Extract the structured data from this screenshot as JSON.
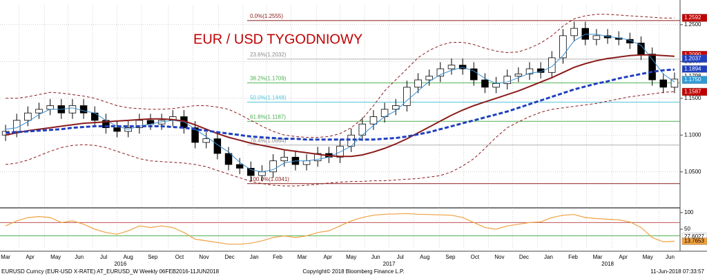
{
  "chart_data": {
    "type": "candlestick",
    "title": "EUR / USD TYGODNIOWY",
    "categories": [
      null,
      null,
      null,
      null,
      null,
      null,
      null,
      null,
      null,
      null,
      null,
      null,
      null,
      null,
      null,
      null,
      null,
      null,
      null,
      null,
      null,
      null,
      null,
      null,
      null,
      null,
      null,
      null,
      null,
      null,
      null,
      null,
      null,
      null,
      null,
      null,
      null,
      null,
      null,
      null,
      null,
      null,
      null,
      null,
      null,
      null,
      null,
      null,
      null,
      null,
      null,
      null,
      null,
      null,
      null,
      null,
      null,
      null,
      null,
      null,
      null
    ],
    "open": [
      1.1,
      1.105,
      1.12,
      1.13,
      1.135,
      1.14,
      1.13,
      1.14,
      1.13,
      1.12,
      1.11,
      1.105,
      1.11,
      1.12,
      1.115,
      1.12,
      1.125,
      1.11,
      1.09,
      1.095,
      1.075,
      1.06,
      1.055,
      1.045,
      1.05,
      1.065,
      1.07,
      1.06,
      1.065,
      1.075,
      1.07,
      1.085,
      1.1,
      1.115,
      1.125,
      1.135,
      1.14,
      1.165,
      1.175,
      1.18,
      1.19,
      1.195,
      1.19,
      1.175,
      1.165,
      1.17,
      1.18,
      1.183,
      1.19,
      1.185,
      1.205,
      1.235,
      1.245,
      1.23,
      1.235,
      1.232,
      1.23,
      1.225,
      1.21,
      1.175,
      1.165
    ],
    "high": [
      1.114,
      1.129,
      1.139,
      1.144,
      1.149,
      1.149,
      1.149,
      1.149,
      1.139,
      1.129,
      1.119,
      1.119,
      1.129,
      1.129,
      1.129,
      1.134,
      1.134,
      1.119,
      1.104,
      1.104,
      1.084,
      1.069,
      1.064,
      1.059,
      1.074,
      1.079,
      1.079,
      1.074,
      1.084,
      1.084,
      1.094,
      1.109,
      1.124,
      1.134,
      1.144,
      1.149,
      1.174,
      1.184,
      1.189,
      1.199,
      1.204,
      1.204,
      1.199,
      1.184,
      1.179,
      1.189,
      1.192,
      1.199,
      1.199,
      1.214,
      1.244,
      1.254,
      1.254,
      1.244,
      1.244,
      1.241,
      1.239,
      1.234,
      1.219,
      1.184,
      1.185
    ],
    "low": [
      1.092,
      1.097,
      1.112,
      1.122,
      1.127,
      1.122,
      1.122,
      1.122,
      1.112,
      1.102,
      1.097,
      1.097,
      1.102,
      1.107,
      1.107,
      1.112,
      1.102,
      1.082,
      1.082,
      1.067,
      1.052,
      1.047,
      1.037,
      1.037,
      1.042,
      1.057,
      1.052,
      1.052,
      1.057,
      1.062,
      1.062,
      1.077,
      1.092,
      1.107,
      1.117,
      1.127,
      1.132,
      1.157,
      1.167,
      1.172,
      1.182,
      1.182,
      1.167,
      1.157,
      1.157,
      1.162,
      1.172,
      1.175,
      1.177,
      1.177,
      1.197,
      1.227,
      1.222,
      1.222,
      1.224,
      1.222,
      1.217,
      1.202,
      1.167,
      1.157,
      1.157
    ],
    "close": [
      1.105,
      1.12,
      1.13,
      1.135,
      1.14,
      1.13,
      1.14,
      1.13,
      1.12,
      1.11,
      1.105,
      1.11,
      1.12,
      1.115,
      1.12,
      1.125,
      1.11,
      1.09,
      1.095,
      1.075,
      1.06,
      1.055,
      1.045,
      1.05,
      1.065,
      1.07,
      1.06,
      1.065,
      1.075,
      1.07,
      1.085,
      1.1,
      1.115,
      1.125,
      1.135,
      1.14,
      1.165,
      1.175,
      1.18,
      1.19,
      1.195,
      1.19,
      1.175,
      1.165,
      1.17,
      1.18,
      1.183,
      1.19,
      1.185,
      1.205,
      1.235,
      1.245,
      1.23,
      1.235,
      1.232,
      1.23,
      1.225,
      1.21,
      1.175,
      1.165,
      1.176
    ],
    "up_color": "#ffffff",
    "down_color": "#000000",
    "series": [
      {
        "color": "#3a8fd0",
        "dash": false,
        "width": 1,
        "values": [
          1.108,
          1.11,
          1.118,
          1.128,
          1.135,
          1.135,
          1.137,
          1.133,
          1.13,
          1.12,
          1.112,
          1.108,
          1.112,
          1.115,
          1.118,
          1.12,
          1.118,
          1.108,
          1.098,
          1.087,
          1.077,
          1.063,
          1.053,
          1.05,
          1.053,
          1.062,
          1.065,
          1.065,
          1.067,
          1.07,
          1.077,
          1.085,
          1.1,
          1.113,
          1.125,
          1.133,
          1.147,
          1.16,
          1.173,
          1.182,
          1.188,
          1.192,
          1.187,
          1.177,
          1.17,
          1.172,
          1.178,
          1.184,
          1.186,
          1.193,
          1.208,
          1.228,
          1.237,
          1.237,
          1.234,
          1.232,
          1.229,
          1.222,
          1.203,
          1.183,
          1.172
        ]
      },
      {
        "color": "#8b1a1a",
        "dash": false,
        "width": 2,
        "values": [
          1.1,
          1.103,
          1.106,
          1.108,
          1.11,
          1.112,
          1.114,
          1.116,
          1.117,
          1.118,
          1.119,
          1.12,
          1.121,
          1.122,
          1.122,
          1.121,
          1.119,
          1.114,
          1.108,
          1.102,
          1.097,
          1.093,
          1.089,
          1.086,
          1.083,
          1.08,
          1.078,
          1.076,
          1.074,
          1.072,
          1.071,
          1.071,
          1.073,
          1.077,
          1.082,
          1.088,
          1.095,
          1.103,
          1.111,
          1.119,
          1.127,
          1.134,
          1.14,
          1.145,
          1.15,
          1.155,
          1.16,
          1.166,
          1.172,
          1.178,
          1.185,
          1.192,
          1.197,
          1.201,
          1.204,
          1.206,
          1.208,
          1.209,
          1.209,
          1.208,
          1.207
        ]
      },
      {
        "color": "#1f3fbf",
        "dash": true,
        "width": 3,
        "values": [
          1.103,
          1.104,
          1.105,
          1.106,
          1.107,
          1.108,
          1.11,
          1.111,
          1.112,
          1.112,
          1.112,
          1.112,
          1.112,
          1.112,
          1.112,
          1.111,
          1.11,
          1.108,
          1.106,
          1.104,
          1.102,
          1.1,
          1.098,
          1.097,
          1.096,
          1.095,
          1.095,
          1.094,
          1.094,
          1.094,
          1.094,
          1.094,
          1.094,
          1.094,
          1.095,
          1.096,
          1.098,
          1.101,
          1.104,
          1.108,
          1.112,
          1.116,
          1.12,
          1.124,
          1.128,
          1.132,
          1.137,
          1.142,
          1.147,
          1.152,
          1.157,
          1.162,
          1.166,
          1.17,
          1.173,
          1.177,
          1.18,
          1.183,
          1.186,
          1.188,
          1.189
        ]
      },
      {
        "color": "#8b1a1a",
        "dash": true,
        "width": 1,
        "values": [
          1.15,
          1.15,
          1.152,
          1.155,
          1.158,
          1.157,
          1.155,
          1.153,
          1.15,
          1.145,
          1.14,
          1.137,
          1.136,
          1.135,
          1.135,
          1.136,
          1.138,
          1.14,
          1.14,
          1.138,
          1.135,
          1.128,
          1.12,
          1.112,
          1.105,
          1.1,
          1.098,
          1.097,
          1.097,
          1.098,
          1.102,
          1.11,
          1.122,
          1.14,
          1.16,
          1.175,
          1.19,
          1.205,
          1.215,
          1.222,
          1.226,
          1.226,
          1.223,
          1.218,
          1.214,
          1.212,
          1.213,
          1.218,
          1.225,
          1.235,
          1.248,
          1.258,
          1.262,
          1.264,
          1.264,
          1.263,
          1.262,
          1.261,
          1.26,
          1.259,
          1.259
        ]
      },
      {
        "color": "#8b1a1a",
        "dash": true,
        "width": 1,
        "values": [
          1.06,
          1.062,
          1.066,
          1.072,
          1.078,
          1.083,
          1.086,
          1.087,
          1.086,
          1.083,
          1.078,
          1.073,
          1.068,
          1.065,
          1.064,
          1.063,
          1.062,
          1.06,
          1.057,
          1.052,
          1.047,
          1.042,
          1.037,
          1.034,
          1.032,
          1.031,
          1.031,
          1.032,
          1.033,
          1.035,
          1.036,
          1.037,
          1.037,
          1.038,
          1.038,
          1.039,
          1.04,
          1.041,
          1.043,
          1.045,
          1.05,
          1.058,
          1.068,
          1.082,
          1.097,
          1.11,
          1.118,
          1.125,
          1.131,
          1.135,
          1.137,
          1.139,
          1.141,
          1.143,
          1.146,
          1.149,
          1.152,
          1.154,
          1.156,
          1.158,
          1.159
        ]
      }
    ],
    "ylim": [
      1.003,
      1.276
    ],
    "yticks": [
      {
        "value": 1.05,
        "label": "1.0500"
      },
      {
        "value": 1.1,
        "label": "1.1000"
      },
      {
        "value": 1.15,
        "label": "1.1500"
      },
      {
        "value": 1.2,
        "label": "1.2000"
      },
      {
        "value": 1.25,
        "label": "1.2500"
      }
    ],
    "xticks": [
      {
        "value": 0,
        "label": "Mar"
      },
      {
        "value": 2.2,
        "label": "Apr"
      },
      {
        "value": 4.5,
        "label": "May"
      },
      {
        "value": 6.6,
        "label": "Jun"
      },
      {
        "value": 8.8,
        "label": "Jul"
      },
      {
        "value": 11,
        "label": "Aug"
      },
      {
        "value": 13.2,
        "label": "Sep"
      },
      {
        "value": 15.6,
        "label": "Oct"
      },
      {
        "value": 17.8,
        "label": "Nov"
      },
      {
        "value": 20.1,
        "label": "Dec"
      },
      {
        "value": 22.3,
        "label": "Jan"
      },
      {
        "value": 24.4,
        "label": "Feb"
      },
      {
        "value": 26.6,
        "label": "Mar"
      },
      {
        "value": 28.9,
        "label": "Apr"
      },
      {
        "value": 31,
        "label": "May"
      },
      {
        "value": 33.2,
        "label": "Jun"
      },
      {
        "value": 35.4,
        "label": "Jul"
      },
      {
        "value": 37.6,
        "label": "Aug"
      },
      {
        "value": 39.9,
        "label": "Sep"
      },
      {
        "value": 42.1,
        "label": "Oct"
      },
      {
        "value": 44.3,
        "label": "Nov"
      },
      {
        "value": 46.5,
        "label": "Dec"
      },
      {
        "value": 48.7,
        "label": "Jan"
      },
      {
        "value": 50.9,
        "label": "Feb"
      },
      {
        "value": 53.1,
        "label": "Mar"
      },
      {
        "value": 55.4,
        "label": "Apr"
      },
      {
        "value": 57.6,
        "label": "May"
      },
      {
        "value": 59.6,
        "label": "Jun"
      }
    ],
    "years": [
      {
        "value": 10.3,
        "label": "2016"
      },
      {
        "value": 34.4,
        "label": "2017"
      },
      {
        "value": 54,
        "label": "2018"
      }
    ],
    "fib_levels": [
      {
        "label": "0.0%(1.2555)",
        "value": 1.2555,
        "color": "#8b1a1a"
      },
      {
        "label": "23.6%(1.2032)",
        "value": 1.2032,
        "color": "#b0b0b0"
      },
      {
        "label": "38.2%(1.1709)",
        "value": 1.1709,
        "color": "#4caf50"
      },
      {
        "label": "50.0%(1.1448)",
        "value": 1.1448,
        "color": "#4fc3d9"
      },
      {
        "label": "61.8%(1.1187)",
        "value": 1.1187,
        "color": "#4caf50"
      },
      {
        "label": "76.4%(1.0864)",
        "value": 1.0864,
        "color": "#b0b0b0"
      },
      {
        "label": "100.0%(1.0341)",
        "value": 1.0341,
        "color": "#8b1a1a"
      }
    ],
    "price_labels": [
      {
        "value": 1.2592,
        "color": "#c00000",
        "text_color": "#ffffff"
      },
      {
        "value": 1.209,
        "label": "1.2090",
        "color": "#c00000",
        "text_color": "#ffffff"
      },
      {
        "value": 1.2037,
        "color": "#1f3fbf",
        "text_color": "#ffffff"
      },
      {
        "value": 1.1894,
        "color": "#1f3fbf",
        "text_color": "#ffffff"
      },
      {
        "value": 1.1798,
        "color": "#ffffff",
        "text_color": "#000000"
      },
      {
        "value": 1.175,
        "label": "1.1750",
        "color": "#2e9bd6",
        "text_color": "#ffffff"
      },
      {
        "value": 1.1587,
        "color": "#c00000",
        "text_color": "#ffffff"
      }
    ],
    "oscillator": {
      "color": "#f0a040",
      "values": [
        60,
        75,
        85,
        88,
        85,
        70,
        75,
        65,
        50,
        40,
        35,
        45,
        60,
        55,
        60,
        55,
        40,
        20,
        15,
        10,
        5,
        5,
        8,
        15,
        25,
        30,
        25,
        30,
        40,
        45,
        60,
        75,
        85,
        92,
        95,
        96,
        97,
        95,
        94,
        93,
        92,
        85,
        70,
        55,
        50,
        60,
        65,
        70,
        72,
        85,
        92,
        94,
        85,
        82,
        80,
        78,
        72,
        55,
        25,
        12,
        14
      ],
      "ylim": [
        -10,
        110
      ],
      "yticks": [
        100,
        50
      ],
      "levels": [
        {
          "value": 70,
          "color": "#c0504d"
        },
        {
          "value": 30,
          "color": "#4caf50"
        }
      ],
      "labels": [
        {
          "value": 27.6027,
          "color": "#ffffff",
          "text_color": "#000000"
        },
        {
          "value": 13.7653,
          "color": "#f0a040",
          "text_color": "#000000"
        }
      ]
    },
    "footer": {
      "left": "EURUSD Curncy (EUR-USD X-RATE) AT_EURUSD_W  Weekly 06FEB2016-11JUN2018",
      "center": "Copyright© 2018 Bloomberg Finance L.P.",
      "right": "11-Jun-2018 07:33:57"
    }
  }
}
